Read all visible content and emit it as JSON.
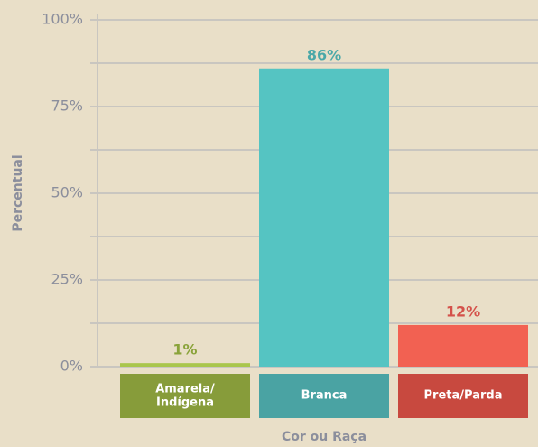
{
  "chart_data": {
    "type": "bar",
    "x_label": "Cor ou Raça",
    "y_label": "Percentual",
    "categories": [
      "Amarela/\nIndígena",
      "Branca",
      "Preta/Parda"
    ],
    "values": [
      1,
      86,
      12
    ],
    "value_labels": [
      "1%",
      "86%",
      "12%"
    ],
    "colors": [
      "#a9c64c",
      "#55c4c2",
      "#f26152"
    ],
    "label_colors": [
      "#8aa33a",
      "#4aa8a8",
      "#d4514a"
    ],
    "category_box_colors": [
      "#879c3a",
      "#4aa3a3",
      "#c8493f"
    ],
    "ylim": [
      0,
      100
    ],
    "yticks": [
      {
        "value": 0,
        "label": "0%"
      },
      {
        "value": 25,
        "label": "25%"
      },
      {
        "value": 50,
        "label": "50%"
      },
      {
        "value": 75,
        "label": "75%"
      },
      {
        "value": 100,
        "label": "100%"
      }
    ],
    "minor_yticks": [
      12.5,
      37.5,
      62.5,
      87.5
    ],
    "grid": true
  }
}
